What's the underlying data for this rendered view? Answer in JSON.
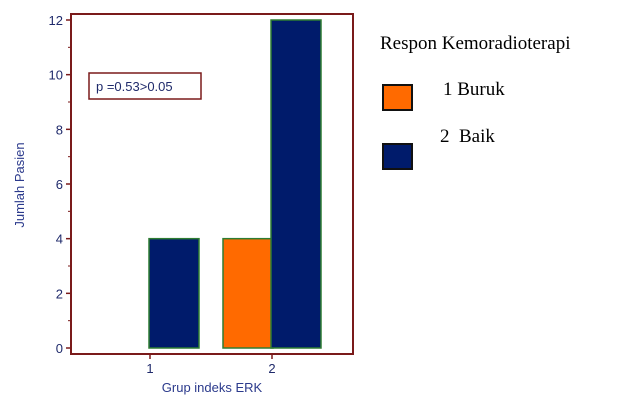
{
  "chart_data": {
    "type": "bar",
    "categories": [
      "1",
      "2"
    ],
    "series": [
      {
        "name": "1 Buruk",
        "values": [
          0,
          4
        ],
        "color": "#ff6a00"
      },
      {
        "name": "2  Baik",
        "values": [
          4,
          12
        ],
        "color": "#001b6b"
      }
    ],
    "xlabel": "Grup indeks ERK",
    "ylabel": "Jumlah Pasien",
    "ylim": [
      0,
      12
    ],
    "yticks": [
      "0",
      "2",
      "4",
      "6",
      "8",
      "10",
      "12"
    ],
    "grid": false,
    "annotation": "p =0.53>0.05",
    "legend_title": "Respon Kemoradioterapi",
    "legend_placement": "right",
    "colors": {
      "axis": "#7a1a1a",
      "bar_edge": "#2e7d32",
      "text": "#1f2a6b"
    }
  }
}
